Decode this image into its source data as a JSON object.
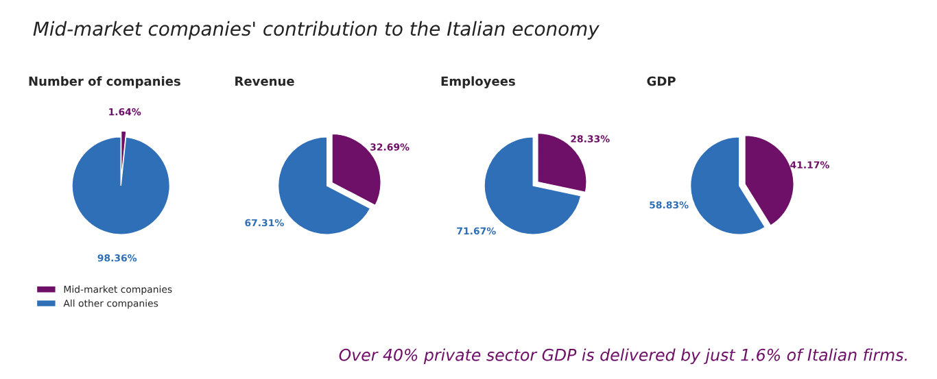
{
  "chart_data": [
    {
      "type": "other",
      "title": "Mid-market companies' contribution to the Italian economy",
      "annotations": [
        "Over 40% private sector GDP is delivered by just 1.6% of Italian firms."
      ]
    },
    {
      "type": "pie",
      "title": "Number of companies",
      "categories": [
        "Mid-market companies",
        "All other companies"
      ],
      "values": [
        1.64,
        98.36
      ],
      "colors": [
        "#6e1068",
        "#2e6fb7"
      ],
      "value_labels": [
        "1.64%",
        "98.36%"
      ],
      "legend": "bottom left"
    },
    {
      "type": "pie",
      "title": "Revenue",
      "categories": [
        null,
        null
      ],
      "values": [
        32.69,
        67.31
      ],
      "colors": [
        "#6e1068",
        "#2e6fb7"
      ],
      "value_labels": [
        "32.69%",
        "67.31%"
      ]
    },
    {
      "type": "pie",
      "title": "Employees",
      "categories": [
        null,
        null
      ],
      "values": [
        28.33,
        71.67
      ],
      "colors": [
        "#6e1068",
        "#2e6fb7"
      ],
      "value_labels": [
        "28.33%",
        "71.67%"
      ]
    },
    {
      "type": "pie",
      "title": "GDP",
      "categories": [
        null,
        null
      ],
      "values": [
        41.17,
        58.83
      ],
      "colors": [
        "#6e1068",
        "#2e6fb7"
      ],
      "value_labels": [
        "41.17%",
        "58.83%"
      ]
    }
  ]
}
